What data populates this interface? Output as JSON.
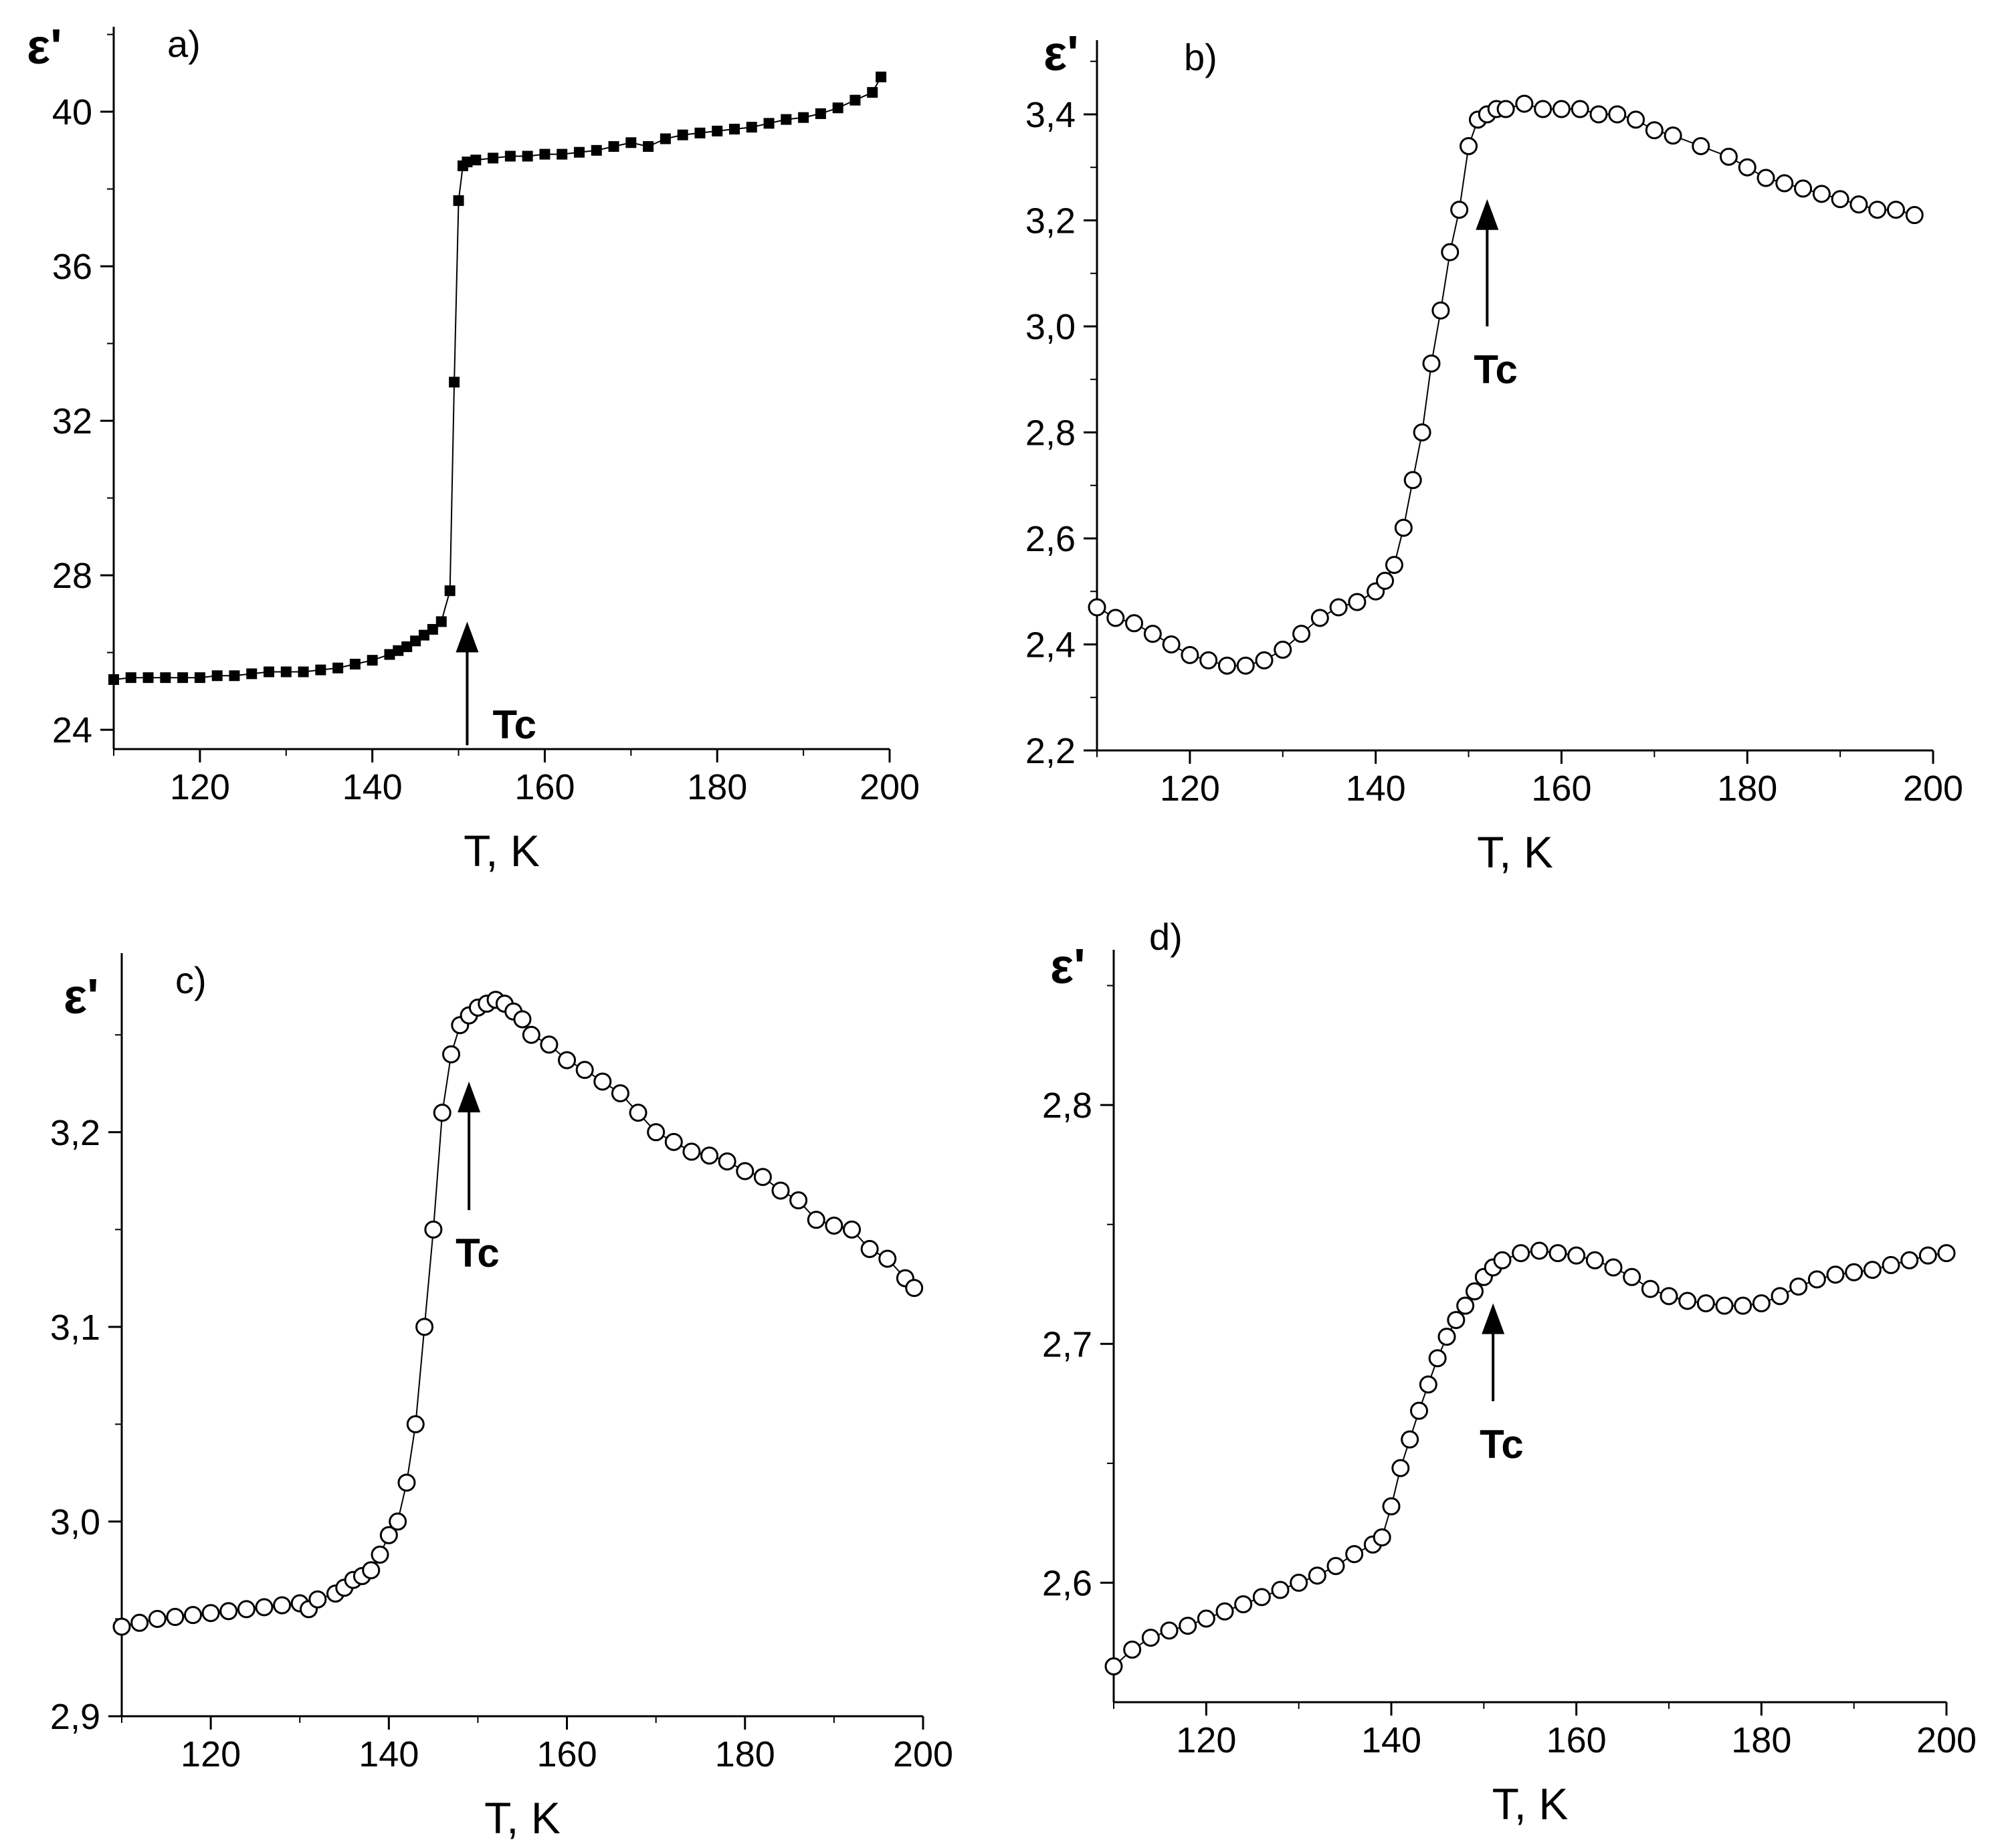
{
  "colors": {
    "ink": "#000000",
    "background": "#ffffff"
  },
  "chart_data": [
    {
      "type": "scatter",
      "panel_label": "a)",
      "ylabel": "ε'",
      "xlabel": "T, K",
      "marker": "filled-square",
      "xlim": [
        110,
        200
      ],
      "ylim": [
        23.5,
        42.2
      ],
      "x_ticks": [
        120,
        140,
        160,
        180,
        200
      ],
      "y_ticks": [
        24,
        28,
        32,
        36,
        40
      ],
      "x_tick_labels": [
        "120",
        "140",
        "160",
        "180",
        "200"
      ],
      "y_tick_labels": [
        "24",
        "28",
        "32",
        "36",
        "40"
      ],
      "annotation": {
        "text": "Tc",
        "x": 151,
        "y_tip": 26.8,
        "y_tail": 23.6
      },
      "x": [
        110,
        112,
        114,
        116,
        118,
        120,
        122,
        124,
        126,
        128,
        130,
        132,
        134,
        136,
        138,
        140,
        142,
        143,
        144,
        145,
        146,
        147,
        148,
        149,
        149.5,
        150,
        150.5,
        151,
        152,
        154,
        156,
        158,
        160,
        162,
        164,
        166,
        168,
        170,
        172,
        174,
        176,
        178,
        180,
        182,
        184,
        186,
        188,
        190,
        192,
        194,
        196,
        198,
        199
      ],
      "y": [
        25.3,
        25.35,
        25.35,
        25.35,
        25.35,
        25.35,
        25.4,
        25.4,
        25.45,
        25.5,
        25.5,
        25.5,
        25.55,
        25.6,
        25.7,
        25.8,
        25.95,
        26.05,
        26.15,
        26.3,
        26.45,
        26.6,
        26.8,
        27.6,
        33.0,
        37.7,
        38.6,
        38.7,
        38.75,
        38.8,
        38.85,
        38.85,
        38.9,
        38.9,
        38.95,
        39.0,
        39.1,
        39.2,
        39.1,
        39.3,
        39.4,
        39.45,
        39.5,
        39.55,
        39.6,
        39.7,
        39.8,
        39.85,
        39.95,
        40.1,
        40.3,
        40.5,
        40.9
      ]
    },
    {
      "type": "scatter",
      "panel_label": "b)",
      "ylabel": "ε'",
      "xlabel": "T, K",
      "marker": "open-circle",
      "xlim": [
        110,
        200
      ],
      "ylim": [
        2.2,
        3.54
      ],
      "x_ticks": [
        120,
        140,
        160,
        180,
        200
      ],
      "y_ticks": [
        2.2,
        2.4,
        2.6,
        2.8,
        3.0,
        3.2,
        3.4
      ],
      "x_tick_labels": [
        "120",
        "140",
        "160",
        "180",
        "200"
      ],
      "y_tick_labels": [
        "2,2",
        "2,4",
        "2,6",
        "2,8",
        "3,0",
        "3,2",
        "3,4"
      ],
      "annotation": {
        "text": "Tc",
        "x": 152,
        "y_tip": 3.24,
        "y_tail": 3.0
      },
      "x": [
        110,
        112,
        114,
        116,
        118,
        120,
        122,
        124,
        126,
        128,
        130,
        132,
        134,
        136,
        138,
        140,
        141,
        142,
        143,
        144,
        145,
        146,
        147,
        148,
        149,
        150,
        151,
        152,
        153,
        154,
        156,
        158,
        160,
        162,
        164,
        166,
        168,
        170,
        172,
        175,
        178,
        180,
        182,
        184,
        186,
        188,
        190,
        192,
        194,
        196,
        198
      ],
      "y": [
        2.47,
        2.45,
        2.44,
        2.42,
        2.4,
        2.38,
        2.37,
        2.36,
        2.36,
        2.37,
        2.39,
        2.42,
        2.45,
        2.47,
        2.48,
        2.5,
        2.52,
        2.55,
        2.62,
        2.71,
        2.8,
        2.93,
        3.03,
        3.14,
        3.22,
        3.34,
        3.39,
        3.4,
        3.41,
        3.41,
        3.42,
        3.41,
        3.41,
        3.41,
        3.4,
        3.4,
        3.39,
        3.37,
        3.36,
        3.34,
        3.32,
        3.3,
        3.28,
        3.27,
        3.26,
        3.25,
        3.24,
        3.23,
        3.22,
        3.22,
        3.21
      ]
    },
    {
      "type": "scatter",
      "panel_label": "c)",
      "ylabel": "ε'",
      "xlabel": "T, K",
      "marker": "open-circle",
      "xlim": [
        110,
        200
      ],
      "ylim": [
        2.9,
        3.292
      ],
      "x_ticks": [
        120,
        140,
        160,
        180,
        200
      ],
      "y_ticks": [
        2.9,
        3.0,
        3.1,
        3.2
      ],
      "x_tick_labels": [
        "120",
        "140",
        "160",
        "180",
        "200"
      ],
      "y_tick_labels": [
        "2,9",
        "3,0",
        "3,1",
        "3,2"
      ],
      "annotation": {
        "text": "Tc",
        "x": 149,
        "y_tip": 3.226,
        "y_tail": 3.16
      },
      "x": [
        110,
        112,
        114,
        116,
        118,
        120,
        122,
        124,
        126,
        128,
        130,
        131,
        132,
        134,
        135,
        136,
        137,
        138,
        139,
        140,
        141,
        142,
        143,
        144,
        145,
        146,
        147,
        148,
        149,
        150,
        151,
        152,
        153,
        154,
        155,
        156,
        158,
        160,
        162,
        164,
        166,
        168,
        170,
        172,
        174,
        176,
        178,
        180,
        182,
        184,
        186,
        188,
        190,
        192,
        194,
        196,
        198,
        199
      ],
      "y": [
        2.946,
        2.948,
        2.95,
        2.951,
        2.952,
        2.953,
        2.954,
        2.955,
        2.956,
        2.957,
        2.958,
        2.955,
        2.96,
        2.963,
        2.966,
        2.97,
        2.972,
        2.975,
        2.983,
        2.993,
        3.0,
        3.02,
        3.05,
        3.1,
        3.15,
        3.21,
        3.24,
        3.255,
        3.26,
        3.264,
        3.266,
        3.268,
        3.266,
        3.262,
        3.258,
        3.25,
        3.245,
        3.237,
        3.232,
        3.226,
        3.22,
        3.21,
        3.2,
        3.195,
        3.19,
        3.188,
        3.185,
        3.18,
        3.177,
        3.17,
        3.165,
        3.155,
        3.152,
        3.15,
        3.14,
        3.135,
        3.125,
        3.12
      ]
    },
    {
      "type": "scatter",
      "panel_label": "d)",
      "ylabel": "ε'",
      "xlabel": "T, K",
      "marker": "open-circle",
      "xlim": [
        110,
        200
      ],
      "ylim": [
        2.55,
        2.865
      ],
      "x_ticks": [
        120,
        140,
        160,
        180,
        200
      ],
      "y_ticks": [
        2.6,
        2.7,
        2.8
      ],
      "x_tick_labels": [
        "120",
        "140",
        "160",
        "180",
        "200"
      ],
      "y_tick_labels": [
        "2,6",
        "2,7",
        "2,8"
      ],
      "annotation": {
        "text": "Tc",
        "x": 151,
        "y_tip": 2.717,
        "y_tail": 2.676
      },
      "x": [
        110,
        112,
        114,
        116,
        118,
        120,
        122,
        124,
        126,
        128,
        130,
        132,
        134,
        136,
        138,
        139,
        140,
        141,
        142,
        143,
        144,
        145,
        146,
        147,
        148,
        149,
        150,
        151,
        152,
        154,
        156,
        158,
        160,
        162,
        164,
        166,
        168,
        170,
        172,
        174,
        176,
        178,
        180,
        182,
        184,
        186,
        188,
        190,
        192,
        194,
        196,
        198,
        200
      ],
      "y": [
        2.565,
        2.572,
        2.577,
        2.58,
        2.582,
        2.585,
        2.588,
        2.591,
        2.594,
        2.597,
        2.6,
        2.603,
        2.607,
        2.612,
        2.616,
        2.619,
        2.632,
        2.648,
        2.66,
        2.672,
        2.683,
        2.694,
        2.703,
        2.71,
        2.716,
        2.722,
        2.728,
        2.732,
        2.735,
        2.738,
        2.739,
        2.738,
        2.737,
        2.735,
        2.732,
        2.728,
        2.723,
        2.72,
        2.718,
        2.717,
        2.716,
        2.716,
        2.717,
        2.72,
        2.724,
        2.727,
        2.729,
        2.73,
        2.731,
        2.733,
        2.735,
        2.737,
        2.738
      ]
    }
  ]
}
